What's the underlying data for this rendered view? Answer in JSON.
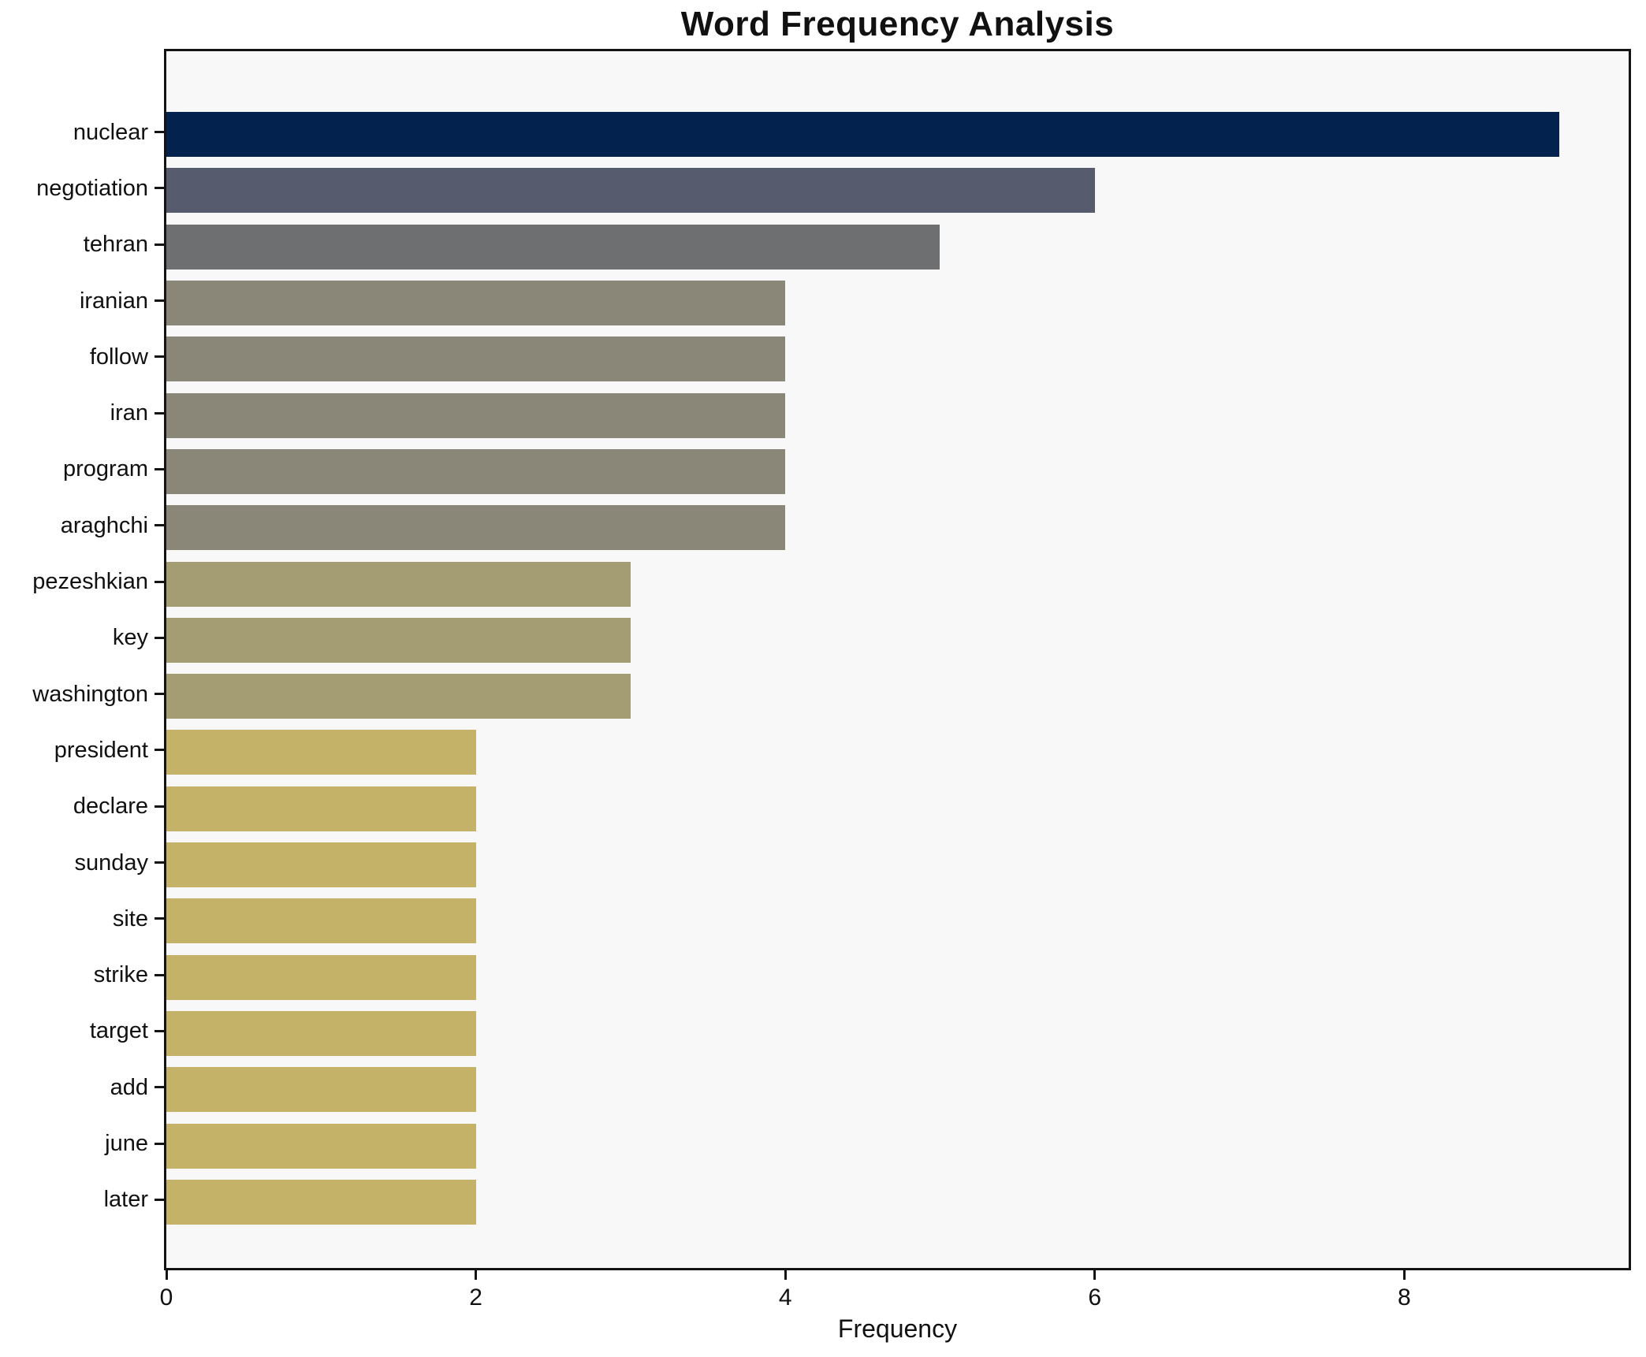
{
  "title": "Word Frequency Analysis",
  "chart_data": {
    "type": "bar",
    "orientation": "horizontal",
    "title": "Word Frequency Analysis",
    "xlabel": "Frequency",
    "ylabel": "",
    "categories": [
      "nuclear",
      "negotiation",
      "tehran",
      "iranian",
      "follow",
      "iran",
      "program",
      "araghchi",
      "pezeshkian",
      "key",
      "washington",
      "president",
      "declare",
      "sunday",
      "site",
      "strike",
      "target",
      "add",
      "june",
      "later"
    ],
    "values": [
      9,
      6,
      5,
      4,
      4,
      4,
      4,
      4,
      3,
      3,
      3,
      2,
      2,
      2,
      2,
      2,
      2,
      2,
      2,
      2
    ],
    "bar_colors": [
      "#03234e",
      "#565c6e",
      "#6d6f71",
      "#8a8778",
      "#8a8778",
      "#8a8778",
      "#8a8778",
      "#8a8778",
      "#a49c73",
      "#a49c73",
      "#a49c73",
      "#c3b268",
      "#c3b268",
      "#c3b268",
      "#c3b268",
      "#c3b268",
      "#c3b268",
      "#c3b268",
      "#c3b268",
      "#c3b268"
    ],
    "xlim": [
      0,
      9.45
    ],
    "x_ticks": [
      0,
      2,
      4,
      6,
      8
    ],
    "x_tick_labels": [
      "0",
      "2",
      "4",
      "6",
      "8"
    ],
    "grid": false,
    "legend": "none",
    "plot_bg": "#f8f8f9",
    "axis_color": "#141414"
  }
}
